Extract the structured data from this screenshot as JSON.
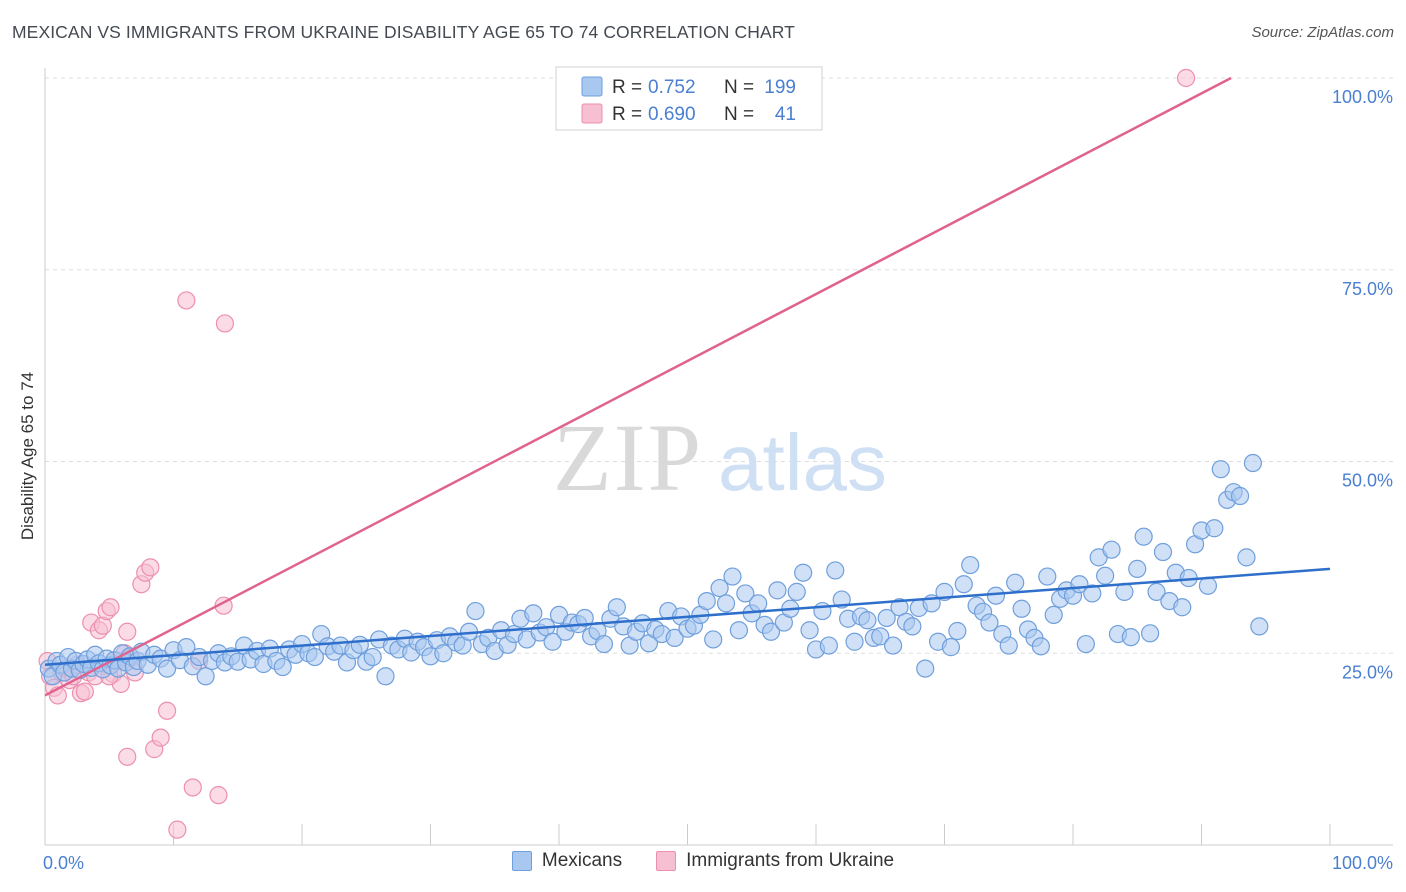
{
  "title": "MEXICAN VS IMMIGRANTS FROM UKRAINE DISABILITY AGE 65 TO 74 CORRELATION CHART",
  "source": "Source: ZipAtlas.com",
  "watermark": {
    "zip": "ZIP",
    "atlas": "atlas"
  },
  "chart_data": {
    "type": "scatter",
    "title": "MEXICAN VS IMMIGRANTS FROM UKRAINE DISABILITY AGE 65 TO 74 CORRELATION CHART",
    "ylabel": "Disability Age 65 to 74",
    "xlabel": "",
    "xlim": [
      0,
      100
    ],
    "ylim": [
      0,
      100
    ],
    "x_tick_labels": [
      "0.0%",
      "100.0%"
    ],
    "y_tick_labels": [
      {
        "value": 25,
        "label": "25.0%"
      },
      {
        "value": 50,
        "label": "50.0%"
      },
      {
        "value": 75,
        "label": "75.0%"
      },
      {
        "value": 100,
        "label": "100.0%"
      }
    ],
    "grid": true,
    "legend": {
      "placement": "top-center",
      "entries": [
        {
          "r_label": "R =",
          "r_value": "0.752",
          "n_label": "N =",
          "n_value": "199"
        },
        {
          "r_label": "R =",
          "r_value": "0.690",
          "n_label": "N =",
          "n_value": "41"
        }
      ]
    },
    "colors": {
      "blue_fill": "#a9c8f0",
      "blue_stroke": "#6f9fdc",
      "blue_line": "#2f6fcc",
      "pink_fill": "#f7bfd2",
      "pink_stroke": "#ec8fb0",
      "pink_line": "#e0628f",
      "axis_text": "#4a7fd1"
    },
    "series": [
      {
        "name": "Mexicans",
        "trend": {
          "x": [
            0,
            100
          ],
          "y": [
            23.5,
            36.0
          ]
        },
        "points": [
          [
            0.3,
            23.0
          ],
          [
            0.6,
            22.0
          ],
          [
            0.9,
            24.0
          ],
          [
            1.2,
            23.5
          ],
          [
            1.5,
            22.5
          ],
          [
            1.8,
            24.5
          ],
          [
            2.1,
            23.0
          ],
          [
            2.4,
            24.0
          ],
          [
            2.7,
            22.8
          ],
          [
            3.0,
            23.6
          ],
          [
            3.3,
            24.2
          ],
          [
            3.6,
            23.1
          ],
          [
            3.9,
            24.8
          ],
          [
            4.2,
            23.7
          ],
          [
            4.5,
            22.9
          ],
          [
            4.8,
            24.3
          ],
          [
            5.1,
            23.4
          ],
          [
            5.4,
            24.1
          ],
          [
            5.7,
            23.0
          ],
          [
            6.0,
            25.0
          ],
          [
            6.3,
            23.8
          ],
          [
            6.6,
            24.6
          ],
          [
            6.9,
            23.2
          ],
          [
            7.2,
            24.0
          ],
          [
            7.5,
            25.2
          ],
          [
            8.0,
            23.5
          ],
          [
            8.5,
            24.8
          ],
          [
            9.0,
            24.3
          ],
          [
            9.5,
            23.0
          ],
          [
            10.0,
            25.4
          ],
          [
            10.5,
            24.1
          ],
          [
            11.0,
            25.8
          ],
          [
            11.5,
            23.3
          ],
          [
            12.0,
            24.5
          ],
          [
            12.5,
            22.0
          ],
          [
            13.0,
            24.0
          ],
          [
            13.5,
            25.0
          ],
          [
            14.0,
            23.8
          ],
          [
            14.5,
            24.6
          ],
          [
            15.0,
            23.9
          ],
          [
            15.5,
            26.0
          ],
          [
            16.0,
            24.2
          ],
          [
            16.5,
            25.3
          ],
          [
            17.0,
            23.6
          ],
          [
            17.5,
            25.6
          ],
          [
            18.0,
            24.0
          ],
          [
            18.5,
            23.2
          ],
          [
            19.0,
            25.5
          ],
          [
            19.5,
            24.8
          ],
          [
            20.0,
            26.2
          ],
          [
            20.5,
            25.0
          ],
          [
            21.0,
            24.5
          ],
          [
            21.5,
            27.5
          ],
          [
            22.0,
            25.9
          ],
          [
            22.5,
            25.2
          ],
          [
            23.0,
            26.0
          ],
          [
            23.5,
            23.8
          ],
          [
            24.0,
            25.4
          ],
          [
            24.5,
            26.1
          ],
          [
            25.0,
            23.9
          ],
          [
            25.5,
            24.5
          ],
          [
            26.0,
            26.8
          ],
          [
            26.5,
            22.0
          ],
          [
            27.0,
            26.0
          ],
          [
            27.5,
            25.5
          ],
          [
            28.0,
            26.9
          ],
          [
            28.5,
            25.1
          ],
          [
            29.0,
            26.5
          ],
          [
            29.5,
            25.8
          ],
          [
            30.0,
            24.6
          ],
          [
            30.5,
            26.7
          ],
          [
            31.0,
            25.0
          ],
          [
            31.5,
            27.2
          ],
          [
            32.0,
            26.4
          ],
          [
            32.5,
            26.0
          ],
          [
            33.0,
            27.8
          ],
          [
            33.5,
            30.5
          ],
          [
            34.0,
            26.2
          ],
          [
            34.5,
            27.0
          ],
          [
            35.0,
            25.3
          ],
          [
            35.5,
            28.0
          ],
          [
            36.0,
            26.1
          ],
          [
            36.5,
            27.5
          ],
          [
            37.0,
            29.5
          ],
          [
            37.5,
            26.8
          ],
          [
            38.0,
            30.2
          ],
          [
            38.5,
            27.7
          ],
          [
            39.0,
            28.4
          ],
          [
            39.5,
            26.5
          ],
          [
            40.0,
            30.0
          ],
          [
            40.5,
            27.8
          ],
          [
            41.0,
            29.0
          ],
          [
            41.5,
            28.8
          ],
          [
            42.0,
            29.6
          ],
          [
            42.5,
            27.2
          ],
          [
            43.0,
            27.9
          ],
          [
            43.5,
            26.2
          ],
          [
            44.0,
            29.5
          ],
          [
            44.5,
            31.0
          ],
          [
            45.0,
            28.5
          ],
          [
            45.5,
            26.0
          ],
          [
            46.0,
            27.8
          ],
          [
            46.5,
            28.9
          ],
          [
            47.0,
            26.3
          ],
          [
            47.5,
            28.1
          ],
          [
            48.0,
            27.5
          ],
          [
            48.5,
            30.5
          ],
          [
            49.0,
            27.0
          ],
          [
            49.5,
            29.8
          ],
          [
            50.0,
            28.2
          ],
          [
            50.5,
            28.6
          ],
          [
            51.0,
            30.0
          ],
          [
            51.5,
            31.8
          ],
          [
            52.0,
            26.8
          ],
          [
            52.5,
            33.5
          ],
          [
            53.0,
            31.5
          ],
          [
            53.5,
            35.0
          ],
          [
            54.0,
            28.0
          ],
          [
            54.5,
            32.8
          ],
          [
            55.0,
            30.2
          ],
          [
            55.5,
            31.5
          ],
          [
            56.0,
            28.7
          ],
          [
            56.5,
            27.8
          ],
          [
            57.0,
            33.2
          ],
          [
            57.5,
            29.0
          ],
          [
            58.0,
            30.8
          ],
          [
            58.5,
            33.0
          ],
          [
            59.0,
            35.5
          ],
          [
            59.5,
            28.0
          ],
          [
            60.0,
            25.5
          ],
          [
            60.5,
            30.5
          ],
          [
            61.0,
            26.0
          ],
          [
            61.5,
            35.8
          ],
          [
            62.0,
            32.0
          ],
          [
            62.5,
            29.5
          ],
          [
            63.0,
            26.5
          ],
          [
            63.5,
            29.8
          ],
          [
            64.0,
            29.3
          ],
          [
            64.5,
            27.0
          ],
          [
            65.0,
            27.2
          ],
          [
            65.5,
            29.6
          ],
          [
            66.0,
            26.0
          ],
          [
            66.5,
            31.0
          ],
          [
            67.0,
            29.1
          ],
          [
            67.5,
            28.5
          ],
          [
            68.0,
            30.9
          ],
          [
            68.5,
            23.0
          ],
          [
            69.0,
            31.5
          ],
          [
            69.5,
            26.5
          ],
          [
            70.0,
            33.0
          ],
          [
            70.5,
            25.8
          ],
          [
            71.0,
            27.9
          ],
          [
            71.5,
            34.0
          ],
          [
            72.0,
            36.5
          ],
          [
            72.5,
            31.2
          ],
          [
            73.0,
            30.4
          ],
          [
            73.5,
            29.0
          ],
          [
            74.0,
            32.5
          ],
          [
            74.5,
            27.5
          ],
          [
            75.0,
            26.0
          ],
          [
            75.5,
            34.2
          ],
          [
            76.0,
            30.8
          ],
          [
            76.5,
            28.1
          ],
          [
            77.0,
            27.0
          ],
          [
            77.5,
            25.9
          ],
          [
            78.0,
            35.0
          ],
          [
            78.5,
            30.0
          ],
          [
            79.0,
            32.1
          ],
          [
            79.5,
            33.2
          ],
          [
            80.0,
            32.5
          ],
          [
            80.5,
            34.0
          ],
          [
            81.0,
            26.2
          ],
          [
            81.5,
            32.8
          ],
          [
            82.0,
            37.5
          ],
          [
            82.5,
            35.1
          ],
          [
            83.0,
            38.5
          ],
          [
            83.5,
            27.5
          ],
          [
            84.0,
            33.0
          ],
          [
            84.5,
            27.1
          ],
          [
            85.0,
            36.0
          ],
          [
            85.5,
            40.2
          ],
          [
            86.0,
            27.6
          ],
          [
            86.5,
            33.0
          ],
          [
            87.0,
            38.2
          ],
          [
            87.5,
            31.8
          ],
          [
            88.0,
            35.5
          ],
          [
            88.5,
            31.0
          ],
          [
            89.0,
            34.8
          ],
          [
            89.5,
            39.2
          ],
          [
            90.0,
            41.0
          ],
          [
            90.5,
            33.8
          ],
          [
            91.0,
            41.3
          ],
          [
            91.5,
            49.0
          ],
          [
            92.0,
            45.0
          ],
          [
            92.5,
            46.0
          ],
          [
            93.0,
            45.5
          ],
          [
            93.5,
            37.5
          ],
          [
            94.0,
            49.8
          ],
          [
            94.5,
            28.5
          ]
        ]
      },
      {
        "name": "Immigrants from Ukraine",
        "trend": {
          "x": [
            0,
            92.3
          ],
          "y": [
            19.5,
            100.0
          ]
        },
        "points": [
          [
            0.2,
            24.0
          ],
          [
            0.4,
            22.0
          ],
          [
            0.7,
            20.5
          ],
          [
            1.0,
            19.5
          ],
          [
            1.3,
            22.5
          ],
          [
            1.6,
            23.0
          ],
          [
            1.9,
            21.5
          ],
          [
            2.2,
            22.0
          ],
          [
            2.5,
            23.5
          ],
          [
            2.8,
            19.8
          ],
          [
            3.1,
            20.0
          ],
          [
            3.4,
            22.5
          ],
          [
            3.6,
            29.0
          ],
          [
            3.9,
            22.0
          ],
          [
            4.2,
            28.0
          ],
          [
            4.5,
            28.6
          ],
          [
            4.8,
            30.5
          ],
          [
            5.1,
            31.0
          ],
          [
            5.3,
            22.3
          ],
          [
            5.6,
            24.0
          ],
          [
            5.9,
            21.0
          ],
          [
            6.2,
            25.0
          ],
          [
            6.4,
            27.8
          ],
          [
            6.7,
            24.5
          ],
          [
            7.0,
            22.5
          ],
          [
            7.5,
            34.0
          ],
          [
            7.8,
            35.5
          ],
          [
            8.2,
            36.2
          ],
          [
            8.5,
            12.5
          ],
          [
            9.0,
            14.0
          ],
          [
            9.5,
            17.5
          ],
          [
            10.3,
            2.0
          ],
          [
            11.0,
            71.0
          ],
          [
            11.5,
            7.5
          ],
          [
            12.0,
            24.0
          ],
          [
            13.5,
            6.5
          ],
          [
            14.0,
            68.0
          ],
          [
            13.9,
            31.2
          ],
          [
            6.4,
            11.5
          ],
          [
            5.0,
            22.0
          ],
          [
            88.8,
            100.0
          ]
        ]
      }
    ]
  }
}
